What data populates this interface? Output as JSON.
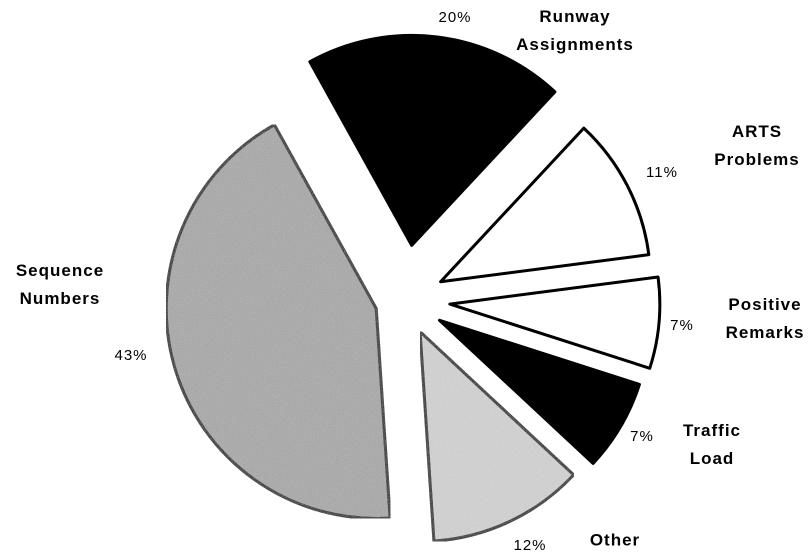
{
  "chart_data": {
    "type": "pie",
    "categories": [
      "Runway Assignments",
      "ARTS Problems",
      "Positive Remarks",
      "Traffic Load",
      "Other",
      "Sequence Numbers"
    ],
    "values": [
      20,
      11,
      7,
      7,
      12,
      43
    ],
    "value_labels": [
      "20%",
      "11%",
      "7%",
      "7%",
      "12%",
      "43%"
    ],
    "colors": [
      "#000000",
      "#ffffff",
      "#ffffff",
      "#000000",
      "#d4d4d4",
      "#a8a8a8"
    ]
  }
}
